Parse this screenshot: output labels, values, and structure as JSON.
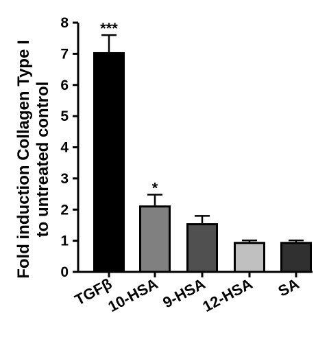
{
  "chart_data": {
    "type": "bar",
    "title": "",
    "xlabel": "",
    "ylabel_lines": [
      "Fold induction Collagen Type I",
      "to untreated control"
    ],
    "ylim": [
      0,
      8
    ],
    "yticks": [
      0,
      1,
      2,
      3,
      4,
      5,
      6,
      7,
      8
    ],
    "grid": false,
    "categories": [
      "TGFβ",
      "10-HSA",
      "9-HSA",
      "12-HSA",
      "SA"
    ],
    "values": [
      7.02,
      2.1,
      1.53,
      0.93,
      0.93
    ],
    "errors": [
      0.58,
      0.38,
      0.27,
      0.08,
      0.08
    ],
    "significance": [
      "***",
      "*",
      "",
      "",
      ""
    ],
    "colors": [
      "#000000",
      "#808080",
      "#505050",
      "#c0c0c0",
      "#303030"
    ]
  }
}
